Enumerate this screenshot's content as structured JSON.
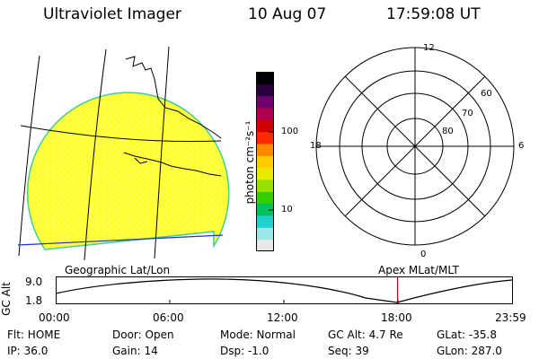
{
  "header": {
    "instrument": "Ultraviolet Imager",
    "date": "10 Aug 07",
    "time": "17:59:08 UT"
  },
  "colorbar": {
    "unit_label": "photon cm⁻²s⁻¹",
    "tick_high": "100",
    "tick_low": "10",
    "colors": [
      "#e8e8e8",
      "#9be8e8",
      "#22d0d0",
      "#00c060",
      "#33d000",
      "#99e000",
      "#e8e800",
      "#ffcc00",
      "#ff8800",
      "#ff2a00",
      "#d00000",
      "#b00050",
      "#700070",
      "#2a0040",
      "#000000"
    ]
  },
  "polar_plot": {
    "lat_labels": [
      "60",
      "70",
      "80"
    ],
    "mlt_labels": {
      "top": "12",
      "left": "18",
      "right": "6",
      "bottom": "0"
    }
  },
  "map": {
    "projection_label": "Geographic Lat/Lon",
    "fill_color": "#ffff33"
  },
  "orbit_plot": {
    "apex_label": "Apex  MLat/MLT",
    "y_axis_label": "GC Alt",
    "y_ticks": [
      "9.0",
      "1.8"
    ],
    "x_ticks": [
      "00:00",
      "06:00",
      "12:00",
      "18:00",
      "23:59"
    ],
    "current_time_hours": 17.98,
    "marker_color": "#cc0000"
  },
  "status": {
    "flt": "Flt: HOME",
    "ip": "IP: 36.0",
    "door": "Door: Open",
    "gain": "Gain: 14",
    "mode": "Mode: Normal",
    "dsp": "Dsp:   -1.0",
    "gc_alt": "GC Alt: 4.7 Re",
    "seq": "Seq: 39",
    "glat": "GLat: -35.8",
    "glon": "GLon: 287.0"
  }
}
